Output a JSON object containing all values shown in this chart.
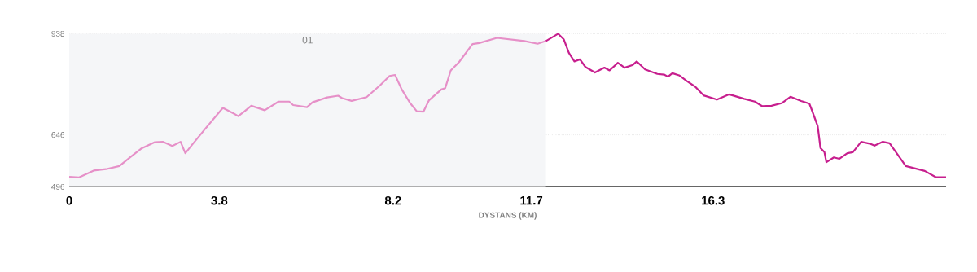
{
  "chart_data": {
    "type": "line",
    "xlabel": "DYSTANS (KM)",
    "xlim": [
      0,
      22.2
    ],
    "xticks": [
      0,
      3.8,
      8.2,
      11.7,
      16.3
    ],
    "ylim": [
      496,
      938
    ],
    "yticks": [
      496,
      646,
      938
    ],
    "grid": "y",
    "marker": "none",
    "line_style": "solid",
    "bands": [
      {
        "axis": "x",
        "from": 0,
        "to": 12.07,
        "label": "01",
        "color": "#f5f6f8"
      }
    ],
    "series": [
      {
        "color": "#e690c8",
        "x": [
          0,
          0.24,
          0.62,
          0.93,
          1.27,
          1.55,
          1.82,
          2.17,
          2.37,
          2.61,
          2.82,
          2.94,
          3.13,
          3.44,
          3.89,
          4.16,
          4.28,
          4.44,
          4.61,
          4.95,
          5.3,
          5.57,
          5.67,
          6.02,
          6.16,
          6.53,
          6.81,
          6.91,
          7.15,
          7.53,
          7.87,
          8.11,
          8.25,
          8.42,
          8.63,
          8.8,
          8.97,
          9.11,
          9.42,
          9.52,
          9.66,
          9.87,
          10.21,
          10.38,
          10.83,
          11.52,
          11.86,
          12.07
        ],
        "values": [
          525,
          523,
          543,
          547,
          556,
          582,
          606,
          625,
          626,
          614,
          626,
          593,
          620,
          663,
          724,
          708,
          700,
          714,
          730,
          717,
          742,
          742,
          732,
          726,
          740,
          754,
          759,
          752,
          744,
          755,
          789,
          816,
          819,
          777,
          738,
          714,
          713,
          746,
          777,
          781,
          832,
          856,
          908,
          911,
          926,
          917,
          909,
          917
        ]
      },
      {
        "color": "#c71f8e",
        "x": [
          12.07,
          12.38,
          12.52,
          12.65,
          12.79,
          12.93,
          13.07,
          13.31,
          13.55,
          13.68,
          13.89,
          14.06,
          14.27,
          14.37,
          14.58,
          14.89,
          15.06,
          15.16,
          15.27,
          15.44,
          15.64,
          15.85,
          16.06,
          16.4,
          16.71,
          17.09,
          17.36,
          17.54,
          17.78,
          18.05,
          18.26,
          18.53,
          18.74,
          18.81,
          18.95,
          19.02,
          19.12,
          19.17,
          19.36,
          19.5,
          19.7,
          19.84,
          20.05,
          20.29,
          20.39,
          20.6,
          20.77,
          21.18,
          21.66,
          21.94,
          22.2
        ],
        "values": [
          917,
          938,
          922,
          883,
          858,
          864,
          842,
          826,
          840,
          832,
          854,
          840,
          848,
          858,
          835,
          822,
          820,
          814,
          824,
          818,
          801,
          785,
          760,
          748,
          763,
          750,
          742,
          729,
          730,
          738,
          756,
          744,
          736,
          715,
          671,
          608,
          596,
          567,
          581,
          577,
          593,
          596,
          626,
          620,
          615,
          626,
          622,
          556,
          542,
          524,
          524
        ]
      }
    ]
  }
}
